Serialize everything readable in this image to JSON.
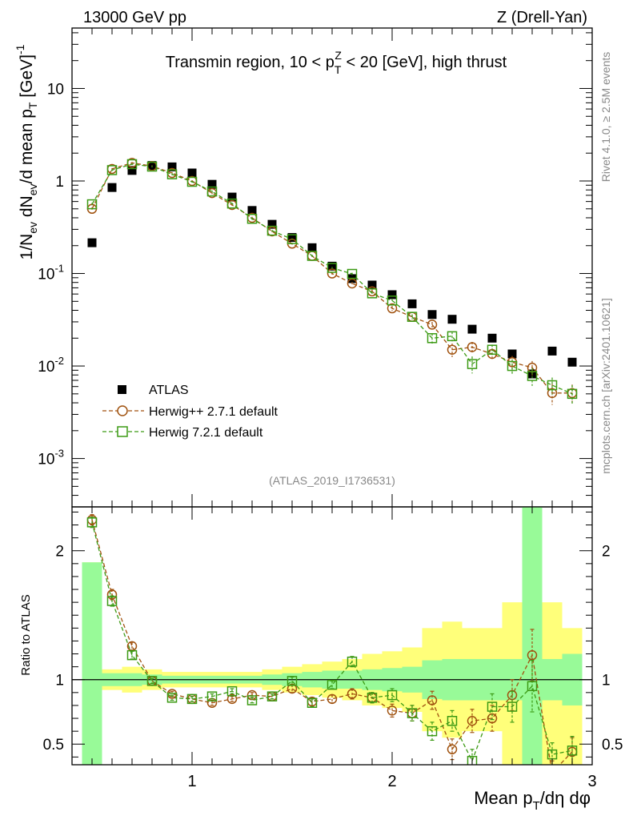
{
  "header": {
    "energy": "13000 GeV pp",
    "process": "Z (Drell-Yan)"
  },
  "side": {
    "rivet": "Rivet 4.1.0, ≥ 2.5M events",
    "mcplots": "mcplots.cern.ch [arXiv:2401.10621]"
  },
  "chart_data": [
    {
      "type": "scatter",
      "panel": "main",
      "title": "Transmin region, 10 < p_T^Z < 20 [GeV], high thrust",
      "ylabel": "1/N_ev dN_ev/d mean p_T [GeV]^-1",
      "yscale": "log",
      "ylim": [
        0.0003,
        45
      ],
      "xlim": [
        0.4,
        3.0
      ],
      "tick_labels_y": [
        "10^-3",
        "10^-2",
        "10^-1",
        "1",
        "10"
      ],
      "analysis_id": "(ATLAS_2019_I1736531)",
      "legend_position": "bottom-left",
      "x": [
        0.5,
        0.6,
        0.7,
        0.8,
        0.9,
        1.0,
        1.1,
        1.2,
        1.3,
        1.4,
        1.5,
        1.6,
        1.7,
        1.8,
        1.9,
        2.0,
        2.1,
        2.2,
        2.3,
        2.4,
        2.5,
        2.6,
        2.7,
        2.8,
        2.9
      ],
      "series": [
        {
          "name": "ATLAS",
          "style": "data",
          "values": [
            0.215,
            0.85,
            1.3,
            1.47,
            1.42,
            1.22,
            0.92,
            0.67,
            0.48,
            0.34,
            0.245,
            0.19,
            0.12,
            0.088,
            0.075,
            0.059,
            0.047,
            0.036,
            0.032,
            0.025,
            0.02,
            0.0135,
            0.0082,
            0.0145,
            0.011
          ]
        },
        {
          "name": "Herwig++ 2.7.1 default",
          "style": "circle",
          "values": [
            0.5,
            1.35,
            1.57,
            1.45,
            1.22,
            1.0,
            0.74,
            0.55,
            0.4,
            0.285,
            0.21,
            0.155,
            0.1,
            0.078,
            0.064,
            0.042,
            0.034,
            0.028,
            0.015,
            0.016,
            0.0135,
            0.011,
            0.0096,
            0.0051,
            0.0051
          ],
          "errors": [
            0.02,
            0.03,
            0.03,
            0.03,
            0.03,
            0.02,
            0.02,
            0.01,
            0.01,
            0.006,
            0.005,
            0.004,
            0.003,
            0.003,
            0.003,
            0.0025,
            0.002,
            0.002,
            0.0025,
            0.0022,
            0.002,
            0.0018,
            0.0017,
            0.0013,
            0.0012
          ]
        },
        {
          "name": "Herwig 7.2.1 default",
          "style": "square",
          "values": [
            0.56,
            1.31,
            1.52,
            1.43,
            1.18,
            0.98,
            0.77,
            0.57,
            0.39,
            0.29,
            0.235,
            0.155,
            0.115,
            0.099,
            0.061,
            0.051,
            0.034,
            0.02,
            0.021,
            0.0105,
            0.015,
            0.01,
            0.0078,
            0.0062,
            0.005
          ],
          "errors": [
            0.02,
            0.03,
            0.03,
            0.03,
            0.03,
            0.02,
            0.02,
            0.01,
            0.01,
            0.006,
            0.005,
            0.004,
            0.003,
            0.003,
            0.003,
            0.0025,
            0.002,
            0.0025,
            0.0025,
            0.0022,
            0.002,
            0.0018,
            0.0017,
            0.0013,
            0.0012
          ]
        }
      ]
    },
    {
      "type": "scatter",
      "panel": "ratio",
      "ylabel": "Ratio to ATLAS",
      "xlabel": "Mean p_T/dη dφ",
      "ylim": [
        0.34,
        2.34
      ],
      "xlim": [
        0.4,
        3.0
      ],
      "yticks": [
        0.5,
        1,
        2
      ],
      "xticks": [
        1,
        2,
        3
      ],
      "reference_line": 1,
      "bands": {
        "x_edges": [
          0.45,
          0.55,
          0.65,
          0.75,
          0.85,
          0.95,
          1.05,
          1.15,
          1.25,
          1.35,
          1.45,
          1.55,
          1.65,
          1.75,
          1.85,
          1.95,
          2.05,
          2.15,
          2.25,
          2.35,
          2.45,
          2.55,
          2.65,
          2.75,
          2.85,
          2.95
        ],
        "stat_low": [
          0.01,
          0.95,
          0.95,
          0.96,
          0.97,
          0.97,
          0.97,
          0.97,
          0.97,
          0.96,
          0.95,
          0.94,
          0.93,
          0.93,
          0.92,
          0.91,
          0.9,
          0.85,
          0.84,
          0.84,
          0.84,
          0.84,
          0.01,
          0.84,
          0.8
        ],
        "stat_high": [
          1.91,
          1.05,
          1.05,
          1.04,
          1.03,
          1.03,
          1.03,
          1.03,
          1.03,
          1.04,
          1.05,
          1.06,
          1.07,
          1.07,
          1.08,
          1.09,
          1.1,
          1.15,
          1.16,
          1.16,
          1.16,
          1.16,
          5.0,
          1.16,
          1.2
        ],
        "syst_low": [
          0.01,
          0.92,
          0.9,
          0.92,
          0.94,
          0.94,
          0.94,
          0.94,
          0.94,
          0.92,
          0.9,
          0.88,
          0.86,
          0.84,
          0.8,
          0.78,
          0.75,
          0.6,
          0.55,
          0.6,
          0.6,
          0.01,
          0.01,
          0.01,
          0.01
        ],
        "syst_high": [
          1.91,
          1.08,
          1.1,
          1.08,
          1.06,
          1.06,
          1.06,
          1.06,
          1.06,
          1.08,
          1.1,
          1.12,
          1.14,
          1.16,
          1.2,
          1.22,
          1.25,
          1.4,
          1.45,
          1.4,
          1.4,
          1.6,
          5.0,
          1.6,
          1.4
        ]
      },
      "series": [
        {
          "name": "Herwig++ 2.7.1 default",
          "style": "circle",
          "values": [
            2.24,
            1.66,
            1.26,
            0.99,
            0.89,
            0.85,
            0.82,
            0.85,
            0.88,
            0.87,
            0.93,
            0.83,
            0.85,
            0.89,
            0.86,
            0.76,
            0.74,
            0.84,
            0.46,
            0.68,
            0.7,
            0.88,
            1.19,
            0.28,
            0.44
          ],
          "errors": [
            0.04,
            0.04,
            0.03,
            0.02,
            0.02,
            0.02,
            0.02,
            0.02,
            0.02,
            0.02,
            0.03,
            0.03,
            0.03,
            0.04,
            0.04,
            0.05,
            0.06,
            0.07,
            0.08,
            0.09,
            0.1,
            0.12,
            0.2,
            0.09,
            0.11
          ]
        },
        {
          "name": "Herwig 7.2.1 default",
          "style": "square",
          "values": [
            2.22,
            1.61,
            1.19,
            0.99,
            0.86,
            0.85,
            0.87,
            0.91,
            0.84,
            0.87,
            0.99,
            0.82,
            0.96,
            1.14,
            0.86,
            0.88,
            0.74,
            0.6,
            0.68,
            0.37,
            0.79,
            0.79,
            0.95,
            0.42,
            0.45
          ],
          "errors": [
            0.04,
            0.04,
            0.03,
            0.02,
            0.02,
            0.02,
            0.02,
            0.02,
            0.02,
            0.02,
            0.03,
            0.03,
            0.03,
            0.04,
            0.04,
            0.05,
            0.06,
            0.07,
            0.08,
            0.09,
            0.1,
            0.12,
            0.2,
            0.09,
            0.11
          ]
        }
      ]
    }
  ],
  "colors": {
    "data": "#000000",
    "herwigpp": "#a0520f",
    "herwig7": "#3c9a14",
    "band_stat": "#98fa98",
    "band_syst": "#ffff7a",
    "grey_text": "#888888"
  }
}
